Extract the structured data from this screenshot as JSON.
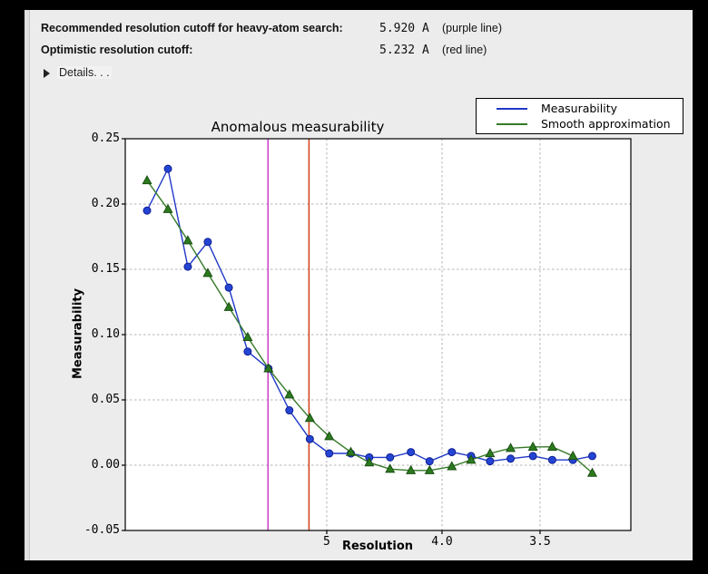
{
  "header": {
    "rows": [
      {
        "label": "Recommended resolution cutoff for heavy-atom search:",
        "value": "5.920 A",
        "note": "(purple line)"
      },
      {
        "label": "Optimistic resolution cutoff:",
        "value": "5.232 A",
        "note": "(red line)"
      }
    ],
    "details_label": "Details. . ."
  },
  "chart_data": {
    "type": "line",
    "title": "Anomalous measurability",
    "xlabel": "Resolution",
    "ylabel": "Measurability",
    "x_axis": {
      "scale": "inverse_d_squared",
      "unit": "Angstrom",
      "tick_labels": [
        "5",
        "4.0",
        "3.5"
      ],
      "tick_values": [
        5.0,
        4.0,
        3.5
      ],
      "range_s": [
        0.00067,
        0.09936
      ]
    },
    "y_axis": {
      "tick_labels": [
        "0.25",
        "0.20",
        "0.15",
        "0.10",
        "0.05",
        "0.00",
        "-0.05"
      ],
      "tick_values": [
        0.25,
        0.2,
        0.15,
        0.1,
        0.05,
        0.0,
        -0.05
      ],
      "range": [
        -0.05,
        0.25
      ]
    },
    "resolution_bins_A": [
      14.25,
      10.54,
      8.81,
      7.72,
      6.92,
      6.38,
      5.91,
      5.53,
      5.22,
      4.97,
      4.73,
      4.55,
      4.37,
      4.21,
      4.08,
      3.94,
      3.83,
      3.73,
      3.63,
      3.53,
      3.45,
      3.37,
      3.3
    ],
    "series": [
      {
        "name": "Measurability",
        "color": "#2038c8",
        "marker": "circle",
        "marker_fill": "#2444d4",
        "marker_edge": "#101f90",
        "values": [
          0.195,
          0.227,
          0.152,
          0.171,
          0.136,
          0.087,
          0.074,
          0.042,
          0.02,
          0.009,
          0.009,
          0.006,
          0.006,
          0.01,
          0.003,
          0.01,
          0.007,
          0.003,
          0.005,
          0.007,
          0.004,
          0.004,
          0.007
        ]
      },
      {
        "name": "Smooth approximation",
        "color": "#357a28",
        "marker": "triangle-up",
        "marker_fill": "#2c7a1e",
        "marker_edge": "#1a4f12",
        "values": [
          0.218,
          0.196,
          0.172,
          0.147,
          0.121,
          0.098,
          0.074,
          0.054,
          0.036,
          0.022,
          0.01,
          0.002,
          -0.003,
          -0.004,
          -0.004,
          -0.001,
          0.004,
          0.009,
          0.013,
          0.014,
          0.014,
          0.007,
          -0.006
        ]
      }
    ],
    "cutoff_lines": [
      {
        "name": "recommended-cutoff",
        "resolution_A": 5.92,
        "color": "#cc3ecc"
      },
      {
        "name": "optimistic-cutoff",
        "resolution_A": 5.232,
        "color": "#d2411a"
      }
    ],
    "grid": true,
    "grid_color": "#b5b5b5",
    "legend_position": "top-right"
  }
}
